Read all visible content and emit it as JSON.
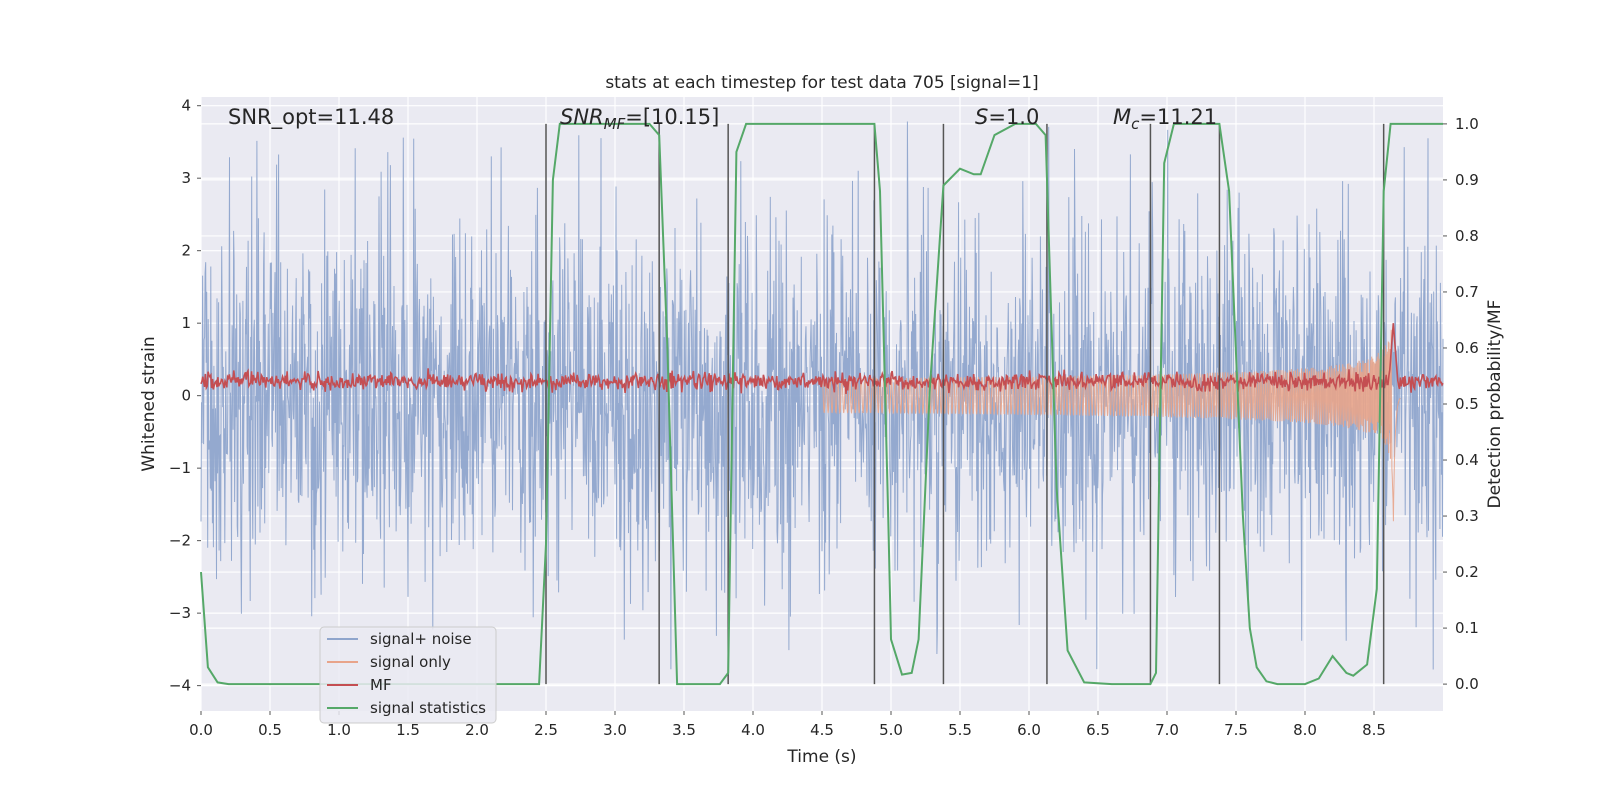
{
  "chart_data": {
    "type": "line",
    "title": "stats at each timestep for test data 705 [signal=1]",
    "xlabel": "Time (s)",
    "ylabel": "Whitened strain",
    "y2label": "Detection probability/MF",
    "xlim": [
      0.0,
      9.0
    ],
    "ylim": [
      -4.35,
      4.12
    ],
    "y2lim": [
      -0.048,
      1.048
    ],
    "xticks": [
      "0.0",
      "0.5",
      "1.0",
      "1.5",
      "2.0",
      "2.5",
      "3.0",
      "3.5",
      "4.0",
      "4.5",
      "5.0",
      "5.5",
      "6.0",
      "6.5",
      "7.0",
      "7.5",
      "8.0",
      "8.5"
    ],
    "yticks": [
      "4",
      "3",
      "2",
      "1",
      "0",
      "−1",
      "−2",
      "−3",
      "−4"
    ],
    "y2ticks": [
      "1.0",
      "0.9",
      "0.8",
      "0.7",
      "0.6",
      "0.5",
      "0.4",
      "0.3",
      "0.2",
      "0.1",
      "0.0"
    ],
    "grid": true,
    "legend_position": "lower-left",
    "annotations": {
      "snr_opt": "SNR_opt=11.48",
      "snr_mf_main": "SNR",
      "snr_mf_sub": "MF",
      "snr_mf_value": "=[10.15]",
      "s_main": "S",
      "s_value": "=1.0",
      "mc_main": "M",
      "mc_sub": "c",
      "mc_value": "=11.21"
    },
    "series": [
      {
        "name": "signal+ noise",
        "color": "#8fa5cc",
        "noise_envelope": {
          "typical_abs": 2.0,
          "peak_abs": 3.8
        }
      },
      {
        "name": "signal only",
        "color": "#e8a48a",
        "chirp": {
          "start_time": 4.5,
          "merger_time": 8.64,
          "peak_amplitude": 1.8
        }
      },
      {
        "name": "MF",
        "color": "#c44e52",
        "level_axis2": 0.54,
        "spike_time": 8.64,
        "spike_value_axis1": 1.0
      },
      {
        "name": "signal statistics",
        "color": "#55a868",
        "x": [
          0.0,
          0.05,
          0.12,
          0.2,
          0.5,
          1.0,
          1.5,
          2.0,
          2.3,
          2.45,
          2.5,
          2.55,
          2.6,
          2.8,
          3.0,
          3.25,
          3.32,
          3.38,
          3.45,
          3.6,
          3.76,
          3.82,
          3.88,
          3.95,
          4.2,
          4.88,
          4.92,
          4.98,
          5.0,
          5.08,
          5.15,
          5.2,
          5.28,
          5.38,
          5.5,
          5.6,
          5.65,
          5.75,
          5.9,
          6.05,
          6.12,
          6.2,
          6.28,
          6.4,
          6.6,
          6.88,
          6.92,
          6.98,
          7.05,
          7.3,
          7.38,
          7.45,
          7.55,
          7.6,
          7.65,
          7.72,
          7.8,
          8.0,
          8.1,
          8.2,
          8.3,
          8.35,
          8.45,
          8.52,
          8.57,
          8.62,
          9.0
        ],
        "values": [
          0.2,
          0.03,
          0.003,
          0.0,
          0.0,
          0.0,
          0.0,
          0.0,
          0.0,
          0.0,
          0.25,
          0.9,
          1.0,
          1.0,
          1.0,
          1.0,
          0.98,
          0.6,
          0.0,
          0.0,
          0.0,
          0.02,
          0.95,
          1.0,
          1.0,
          1.0,
          0.88,
          0.3,
          0.08,
          0.017,
          0.02,
          0.08,
          0.52,
          0.89,
          0.92,
          0.91,
          0.91,
          0.98,
          1.0,
          1.0,
          0.98,
          0.35,
          0.06,
          0.003,
          0.0,
          0.0,
          0.02,
          0.93,
          1.0,
          1.0,
          1.0,
          0.88,
          0.3,
          0.1,
          0.03,
          0.005,
          0.0,
          0.0,
          0.01,
          0.05,
          0.02,
          0.015,
          0.035,
          0.17,
          0.88,
          1.0,
          1.0
        ]
      }
    ],
    "vlines_x": [
      2.5,
      3.32,
      3.82,
      4.88,
      5.38,
      6.13,
      6.88,
      7.38,
      8.57
    ]
  }
}
